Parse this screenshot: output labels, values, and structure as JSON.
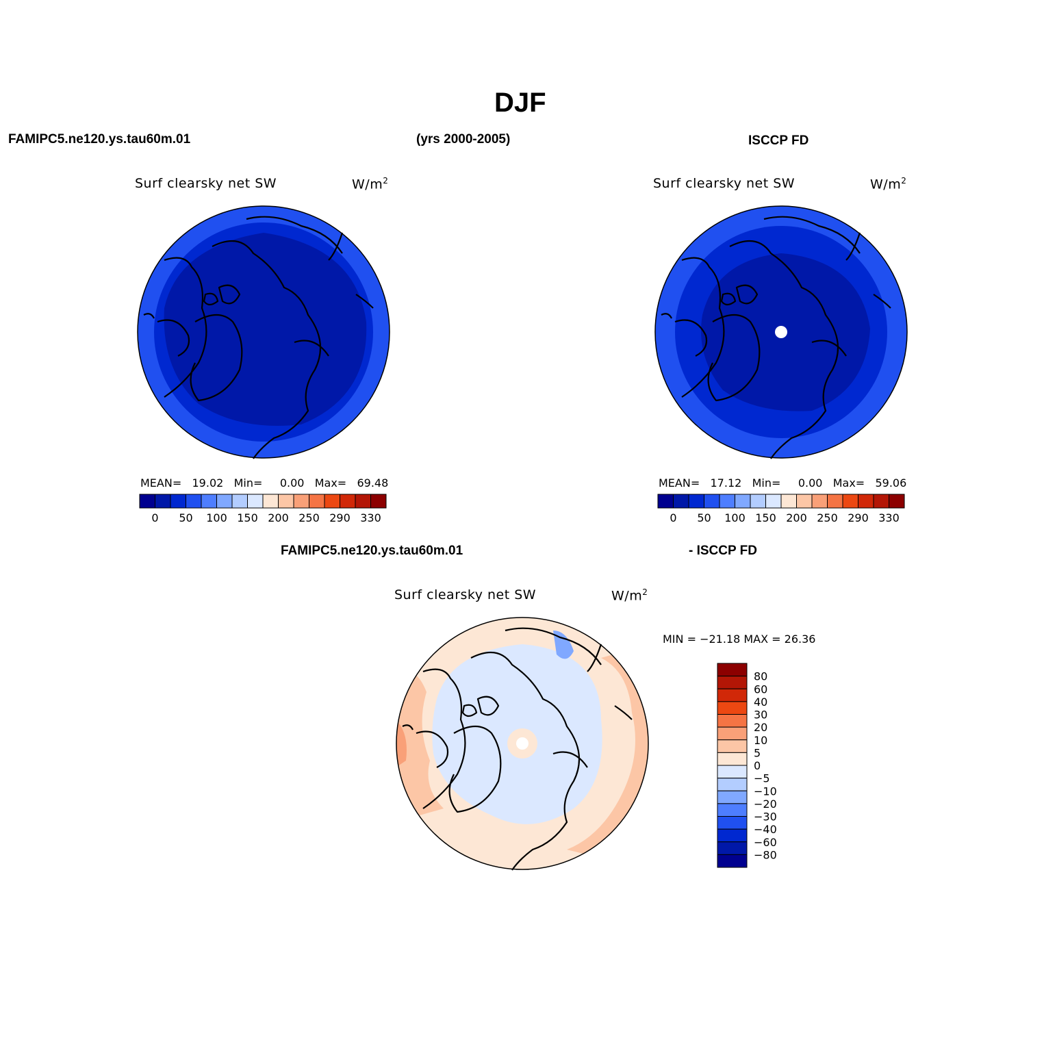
{
  "title": "DJF",
  "header": {
    "left": "FAMIPC5.ne120.ys.tau60m.01",
    "center": "(yrs 2000-2005)",
    "right": "ISCCP FD"
  },
  "diff_header": {
    "left": "FAMIPC5.ne120.ys.tau60m.01",
    "right": "- ISCCP FD"
  },
  "colors": {
    "abs_scale": [
      "#00008f",
      "#0018a8",
      "#0028d0",
      "#2050f0",
      "#4e7eff",
      "#80a8ff",
      "#b3cdff",
      "#dbe8ff",
      "#fde7d5",
      "#fcc6a6",
      "#f9a078",
      "#f57444",
      "#ec4812",
      "#d12808",
      "#b31606",
      "#8c0000"
    ],
    "diff_scale": [
      "#00008f",
      "#0018a8",
      "#0028d0",
      "#2050f0",
      "#4e7eff",
      "#80a8ff",
      "#b3cdff",
      "#dbe8ff",
      "#fde7d5",
      "#fcc6a6",
      "#f9a078",
      "#f57444",
      "#ec4812",
      "#d12808",
      "#b31606",
      "#8c0000"
    ]
  },
  "panels": [
    {
      "id": "model",
      "label": "Surf clearsky net SW",
      "units": "W/m",
      "units_sup": "2",
      "stats": {
        "mean_label": "MEAN=",
        "mean": "19.02",
        "min_label": "Min=",
        "min": "0.00",
        "max_label": "Max=",
        "max": "69.48"
      },
      "base_color": "#0028d0",
      "ring_color": "#2050f0",
      "inner_color": "#0018a8",
      "pole_hole": false
    },
    {
      "id": "obs",
      "label": "Surf clearsky net SW",
      "units": "W/m",
      "units_sup": "2",
      "stats": {
        "mean_label": "MEAN=",
        "mean": "17.12",
        "min_label": "Min=",
        "min": "0.00",
        "max_label": "Max=",
        "max": "59.06"
      },
      "base_color": "#0028d0",
      "ring_color": "#2050f0",
      "inner_color": "#0018a8",
      "pole_hole": true
    }
  ],
  "abs_colorbar": {
    "tick_labels": [
      "0",
      "50",
      "100",
      "150",
      "200",
      "250",
      "290",
      "330"
    ]
  },
  "diff_panel": {
    "label": "Surf clearsky net SW",
    "units": "W/m",
    "units_sup": "2",
    "minmax_text": "MIN = −21.18  MAX =   26.36",
    "colorbar_labels": [
      "80",
      "60",
      "40",
      "30",
      "20",
      "10",
      "5",
      "0",
      "−5",
      "−10",
      "−20",
      "−30",
      "−40",
      "−60",
      "−80"
    ]
  }
}
